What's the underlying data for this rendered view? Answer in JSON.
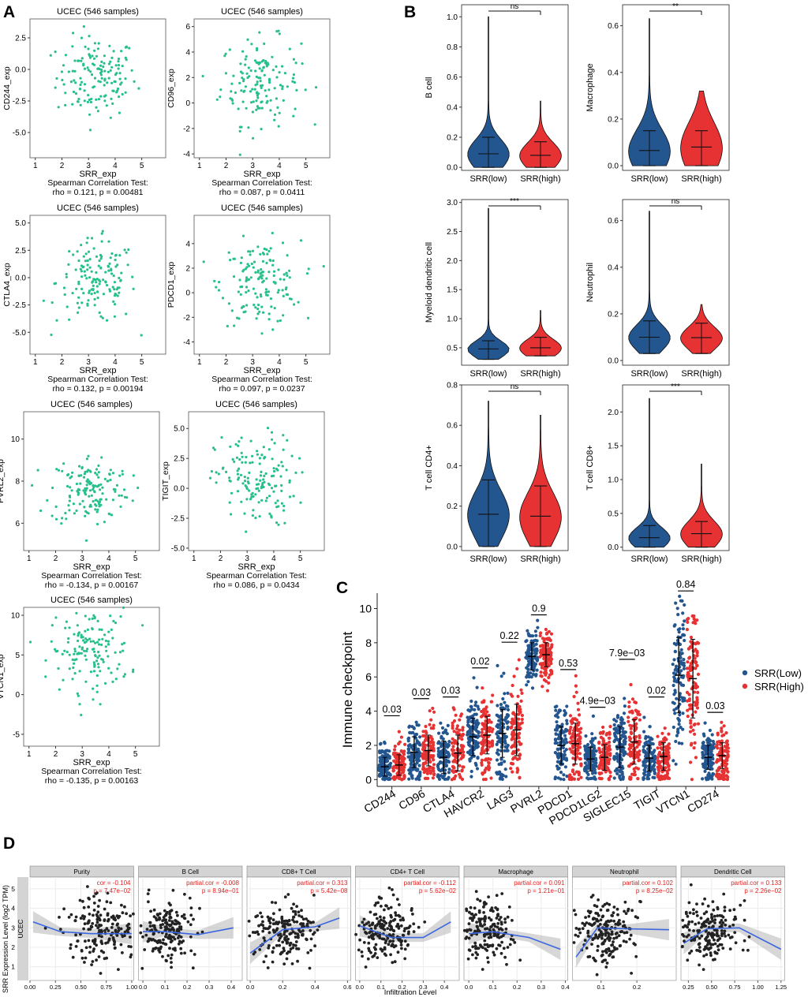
{
  "colors": {
    "green": "#27c08a",
    "low": "#23558f",
    "high": "#e63232",
    "loess": "#3a66e0",
    "red_text": "#e02020"
  },
  "panel_labels": [
    "A",
    "B",
    "C",
    "D"
  ],
  "chart_data": [
    {
      "panel": "A",
      "type": "scatter",
      "common": {
        "title": "UCEC (546 samples)",
        "xlabel": "SRR_exp",
        "test_label": "Spearman Correlation Test:",
        "xticks": [
          1,
          2,
          3,
          4,
          5
        ],
        "xlim": [
          0.8,
          5.9
        ]
      },
      "plots": [
        {
          "ylabel": "CD244_exp",
          "ylim": [
            -7,
            4
          ],
          "yticks": [
            -5.0,
            -2.5,
            0.0,
            2.5
          ],
          "yfmt": 1,
          "center": -0.6,
          "spread": 1.6,
          "rho_line": "rho = 0.121, p = 0.00481"
        },
        {
          "ylabel": "CD96_exp",
          "ylim": [
            -4.3,
            6.6
          ],
          "yticks": [
            -4,
            -2,
            0,
            2,
            4,
            6
          ],
          "yfmt": 0,
          "center": 1.7,
          "spread": 1.7,
          "rho_line": "rho = 0.087, p = 0.0411"
        },
        {
          "ylabel": "CTLA4_exp",
          "ylim": [
            -7,
            5.7
          ],
          "yticks": [
            -5.0,
            -2.5,
            0.0,
            2.5,
            5.0
          ],
          "yfmt": 1,
          "center": -0.4,
          "spread": 1.9,
          "rho_line": "rho = 0.132, p = 0.00194"
        },
        {
          "ylabel": "PDCD1_exp",
          "ylim": [
            -5,
            6.3
          ],
          "yticks": [
            -4,
            -2,
            0,
            2,
            4
          ],
          "yfmt": 0,
          "center": 0.8,
          "spread": 1.7,
          "rho_line": "rho = 0.097, p = 0.0237"
        },
        {
          "ylabel": "PVRL2_exp",
          "ylim": [
            4.7,
            11.3
          ],
          "yticks": [
            6,
            8,
            10
          ],
          "yfmt": 0,
          "center": 7.6,
          "spread": 0.85,
          "rho_line": "rho = -0.134, p = 0.00167"
        },
        {
          "ylabel": "TIGIT_exp",
          "ylim": [
            -5.2,
            6.4
          ],
          "yticks": [
            -5.0,
            -2.5,
            0.0,
            2.5,
            5.0
          ],
          "yfmt": 1,
          "center": 0.6,
          "spread": 1.9,
          "rho_line": "rho = 0.086, p = 0.0434"
        },
        {
          "ylabel": "VTCN1_exp",
          "ylim": [
            -6.5,
            11
          ],
          "yticks": [
            -5,
            0,
            5,
            10
          ],
          "yfmt": 0,
          "center": 5.6,
          "spread": 2.6,
          "rho_line": "rho = -0.135, p = 0.00163"
        }
      ]
    },
    {
      "panel": "B",
      "type": "violin",
      "categories": [
        "SRR(low)",
        "SRR(high)"
      ],
      "plots": [
        {
          "ylabel": "B cell",
          "ylim": [
            -0.02,
            1.08
          ],
          "yticks": [
            0.0,
            0.2,
            0.4,
            0.6,
            0.8,
            1.0
          ],
          "yfmt": 1,
          "sig": "ns",
          "low": {
            "median": 0.09,
            "q1": 0.05,
            "q3": 0.14,
            "min": 0.0,
            "max": 1.0,
            "whisk": 0.2
          },
          "high": {
            "median": 0.08,
            "q1": 0.05,
            "q3": 0.13,
            "min": 0.0,
            "max": 0.44,
            "whisk": 0.17
          }
        },
        {
          "ylabel": "Macrophage",
          "ylim": [
            -0.02,
            0.69
          ],
          "yticks": [
            0.0,
            0.2,
            0.4,
            0.6
          ],
          "yfmt": 1,
          "sig": "**",
          "low": {
            "median": 0.065,
            "q1": 0.025,
            "q3": 0.11,
            "min": 0.0,
            "max": 0.63,
            "whisk": 0.15
          },
          "high": {
            "median": 0.08,
            "q1": 0.03,
            "q3": 0.13,
            "min": 0.0,
            "max": 0.32,
            "whisk": 0.15
          }
        },
        {
          "ylabel": "Myeloid dendritic cell",
          "ylim": [
            0.2,
            3.05
          ],
          "yticks": [
            0.5,
            1.0,
            1.5,
            2.0,
            2.5,
            3.0
          ],
          "yfmt": 1,
          "sig": "***",
          "low": {
            "median": 0.48,
            "q1": 0.42,
            "q3": 0.55,
            "min": 0.3,
            "max": 2.9,
            "whisk": 0.62
          },
          "high": {
            "median": 0.5,
            "q1": 0.44,
            "q3": 0.58,
            "min": 0.36,
            "max": 1.14,
            "whisk": 0.68
          }
        },
        {
          "ylabel": "Neutrophil",
          "ylim": [
            -0.02,
            0.69
          ],
          "yticks": [
            0.0,
            0.2,
            0.4,
            0.6
          ],
          "yfmt": 1,
          "sig": "ns",
          "low": {
            "median": 0.1,
            "q1": 0.08,
            "q3": 0.13,
            "min": 0.03,
            "max": 0.64,
            "whisk": 0.17
          },
          "high": {
            "median": 0.098,
            "q1": 0.075,
            "q3": 0.12,
            "min": 0.03,
            "max": 0.24,
            "whisk": 0.16
          }
        },
        {
          "ylabel": "T cell CD4+",
          "ylim": [
            -0.02,
            0.8
          ],
          "yticks": [
            0.0,
            0.2,
            0.4,
            0.6,
            0.8
          ],
          "yfmt": 1,
          "sig": "ns",
          "low": {
            "median": 0.16,
            "q1": 0.11,
            "q3": 0.22,
            "min": 0.0,
            "max": 0.72,
            "whisk": 0.33
          },
          "high": {
            "median": 0.15,
            "q1": 0.1,
            "q3": 0.21,
            "min": 0.0,
            "max": 0.65,
            "whisk": 0.3
          }
        },
        {
          "ylabel": "T cell CD8+",
          "ylim": [
            -0.05,
            2.4
          ],
          "yticks": [
            0.0,
            0.5,
            1.0,
            1.5,
            2.0
          ],
          "yfmt": 1,
          "sig": "***",
          "low": {
            "median": 0.14,
            "q1": 0.08,
            "q3": 0.22,
            "min": 0.0,
            "max": 2.2,
            "whisk": 0.32
          },
          "high": {
            "median": 0.2,
            "q1": 0.12,
            "q3": 0.3,
            "min": 0.0,
            "max": 1.23,
            "whisk": 0.38
          }
        }
      ]
    },
    {
      "panel": "C",
      "type": "scatter",
      "ylabel": "Immune checkpoint",
      "ylim": [
        -0.4,
        10.9
      ],
      "yticks": [
        0,
        2,
        4,
        6,
        8,
        10
      ],
      "categories": [
        "CD244",
        "CD96",
        "CTLA4",
        "HAVCR2",
        "LAG3",
        "PVRL2",
        "PDCD1",
        "PDCD1LG2",
        "SIGLEC15",
        "TIGIT",
        "VTCN1",
        "CD274"
      ],
      "pvalues": [
        "0.03",
        "0.03",
        "0.03",
        "0.02",
        "0.22",
        "0.9",
        "0.53",
        "4.9e−03",
        "7.9e−03",
        "0.02",
        "0.84",
        "0.03"
      ],
      "legend": [
        {
          "label": "SRR(Low)"
        },
        {
          "label": "SRR(High)"
        }
      ],
      "series": [
        {
          "name": "SRR(Low)",
          "median": [
            0.75,
            1.6,
            1.3,
            2.5,
            2.7,
            7.2,
            2.0,
            1.2,
            1.9,
            1.25,
            6.1,
            1.3
          ],
          "sd": [
            0.55,
            0.9,
            0.95,
            1.1,
            1.4,
            0.8,
            1.1,
            0.7,
            1.2,
            0.75,
            2.2,
            0.7
          ],
          "max": [
            3.5,
            4.2,
            4.4,
            6.3,
            7.6,
            9.4,
            6.0,
            3.8,
            6.4,
            4.5,
            10.8,
            3.7
          ]
        },
        {
          "name": "SRR(High)",
          "median": [
            0.85,
            1.7,
            1.55,
            2.6,
            2.9,
            7.3,
            2.1,
            1.3,
            2.2,
            1.35,
            5.9,
            1.4
          ],
          "sd": [
            0.6,
            0.9,
            1.05,
            1.1,
            1.5,
            0.7,
            1.2,
            0.75,
            1.3,
            0.8,
            2.3,
            0.75
          ],
          "max": [
            3.5,
            4.5,
            4.6,
            6.2,
            7.8,
            9.0,
            6.2,
            4.0,
            6.8,
            4.6,
            9.6,
            3.5
          ]
        }
      ]
    },
    {
      "panel": "D",
      "type": "scatter",
      "strip_y": "UCEC",
      "ylabel": "SRR Expression Level (log2 TPM)",
      "xlabel": "Infiltration Level",
      "ylim": [
        0.3,
        5.6
      ],
      "yticks": [
        1,
        2,
        3,
        4,
        5
      ],
      "facets": [
        {
          "name": "Purity",
          "stat1": "cor = -0.104",
          "stat2": "p = 7.47e−02",
          "xlim": [
            0,
            1.02
          ],
          "xticks": [
            "0.00",
            "0.25",
            "0.50",
            "0.75",
            "1.00"
          ],
          "xvals": [
            0,
            0.25,
            0.5,
            0.75,
            1.0
          ],
          "xmean": 0.72,
          "xsd": 0.2,
          "curve": [
            [
              0.03,
              3.3
            ],
            [
              0.3,
              2.8
            ],
            [
              0.6,
              2.7
            ],
            [
              1.0,
              2.7
            ]
          ]
        },
        {
          "name": "B Cell",
          "stat1": "partial.cor = -0.008",
          "stat2": "p = 8.94e−01",
          "xlim": [
            -0.02,
            0.45
          ],
          "xticks": [
            "0.0",
            "0.1",
            "0.2",
            "0.3",
            "0.4"
          ],
          "xvals": [
            0,
            0.1,
            0.2,
            0.3,
            0.4
          ],
          "xmean": 0.1,
          "xsd": 0.06,
          "curve": [
            [
              0.0,
              2.8
            ],
            [
              0.1,
              2.8
            ],
            [
              0.25,
              2.65
            ],
            [
              0.41,
              3.0
            ]
          ]
        },
        {
          "name": "CD8+ T Cell",
          "stat1": "partial.cor = 0.313",
          "stat2": "p = 5.42e−08",
          "xlim": [
            -0.02,
            0.62
          ],
          "xticks": [
            "0.0",
            "0.2",
            "0.4",
            "0.6"
          ],
          "xvals": [
            0,
            0.2,
            0.4,
            0.6
          ],
          "xmean": 0.2,
          "xsd": 0.1,
          "curve": [
            [
              0.0,
              1.7
            ],
            [
              0.2,
              2.9
            ],
            [
              0.4,
              3.05
            ],
            [
              0.55,
              3.5
            ]
          ]
        },
        {
          "name": "CD4+ T Cell",
          "stat1": "partial.cor = -0.112",
          "stat2": "p = 5.62e−02",
          "xlim": [
            -0.02,
            0.47
          ],
          "xticks": [
            "0.0",
            "0.1",
            "0.2",
            "0.3",
            "0.4"
          ],
          "xvals": [
            0,
            0.1,
            0.2,
            0.3,
            0.4
          ],
          "xmean": 0.12,
          "xsd": 0.07,
          "curve": [
            [
              0.0,
              3.1
            ],
            [
              0.15,
              2.5
            ],
            [
              0.3,
              2.5
            ],
            [
              0.43,
              3.3
            ]
          ]
        },
        {
          "name": "Macrophage",
          "stat1": "partial.cor = 0.091",
          "stat2": "p = 1.21e−01",
          "xlim": [
            -0.02,
            0.41
          ],
          "xticks": [
            "0.0",
            "0.1",
            "0.2",
            "0.3",
            "0.4"
          ],
          "xvals": [
            0,
            0.1,
            0.2,
            0.3,
            0.4
          ],
          "xmean": 0.07,
          "xsd": 0.06,
          "curve": [
            [
              0.0,
              2.7
            ],
            [
              0.1,
              2.8
            ],
            [
              0.25,
              2.5
            ],
            [
              0.38,
              1.9
            ]
          ]
        },
        {
          "name": "Neutrophil",
          "stat1": "partial.cor = 0.102",
          "stat2": "p = 8.25e−02",
          "xlim": [
            0.02,
            0.31
          ],
          "xticks": [
            "0.1",
            "0.2"
          ],
          "xvals": [
            0.1,
            0.2
          ],
          "xmean": 0.11,
          "xsd": 0.04,
          "curve": [
            [
              0.03,
              1.5
            ],
            [
              0.09,
              3.0
            ],
            [
              0.17,
              2.95
            ],
            [
              0.29,
              2.9
            ]
          ]
        },
        {
          "name": "Dendritic Cell",
          "stat1": "partial.cor = 0.133",
          "stat2": "p = 2.26e−02",
          "xlim": [
            0.17,
            1.29
          ],
          "xticks": [
            "0.25",
            "0.50",
            "0.75",
            "1.00",
            "1.25"
          ],
          "xvals": [
            0.25,
            0.5,
            0.75,
            1.0,
            1.25
          ],
          "xmean": 0.48,
          "xsd": 0.15,
          "curve": [
            [
              0.2,
              2.2
            ],
            [
              0.45,
              2.95
            ],
            [
              0.8,
              3.0
            ],
            [
              1.25,
              1.9
            ]
          ]
        }
      ]
    }
  ]
}
